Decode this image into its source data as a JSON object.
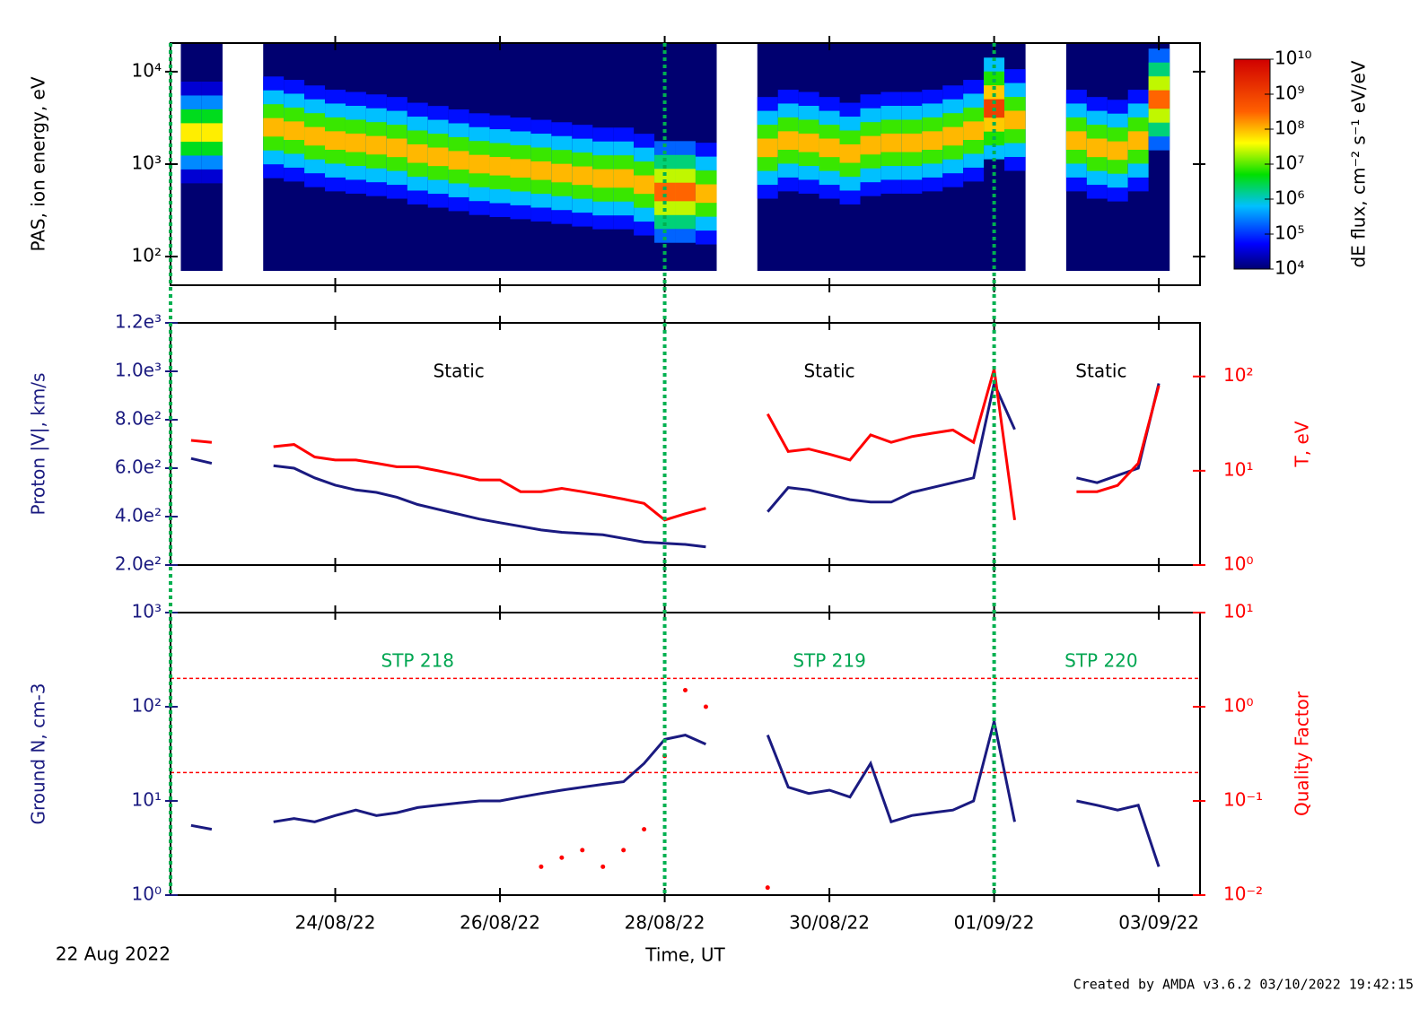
{
  "chart_data": [
    {
      "type": "spectrogram",
      "ylabel": "PAS, ion energy, eV",
      "ylog": true,
      "ylim": [
        49,
        20400
      ],
      "yticks": [
        {
          "value": 100,
          "label": "10²"
        },
        {
          "value": 1000,
          "label": "10³"
        },
        {
          "value": 10000,
          "label": "10⁴"
        }
      ],
      "xlim": [
        0,
        12.5
      ],
      "xticks": [
        {
          "value": 2,
          "label": "24/08/22"
        },
        {
          "value": 4,
          "label": "26/08/22"
        },
        {
          "value": 6,
          "label": "28/08/22"
        },
        {
          "value": 8,
          "label": "30/08/22"
        },
        {
          "value": 10,
          "label": "01/09/22"
        },
        {
          "value": 12,
          "label": "03/09/22"
        }
      ],
      "x": [
        0.25,
        0.5,
        0.75,
        1,
        1.25,
        1.5,
        1.75,
        2,
        2.25,
        2.5,
        2.75,
        3,
        3.25,
        3.5,
        3.75,
        4,
        4.25,
        4.5,
        4.75,
        5,
        5.25,
        5.5,
        5.75,
        6,
        6.25,
        6.5,
        6.75,
        7,
        7.25,
        7.5,
        7.75,
        8,
        8.25,
        8.5,
        8.75,
        9,
        9.25,
        9.5,
        9.75,
        10,
        10.25,
        10.5,
        10.75,
        11,
        11.25,
        11.5,
        11.75,
        12
      ],
      "energy_range": [
        70,
        20000
      ],
      "peak_energy": [
        2200,
        2200,
        null,
        null,
        2500,
        2300,
        2000,
        1800,
        1700,
        1600,
        1500,
        1300,
        1200,
        1100,
        1000,
        950,
        900,
        850,
        800,
        750,
        700,
        700,
        600,
        500,
        500,
        480,
        null,
        null,
        1500,
        1800,
        1700,
        1500,
        1300,
        1600,
        1700,
        1700,
        1800,
        2000,
        2300,
        4000,
        3000,
        null,
        null,
        1800,
        1500,
        1400,
        1800,
        5000
      ],
      "peak_flux": [
        50000000,
        50000000,
        null,
        null,
        100000000,
        100000000,
        100000000,
        100000000,
        100000000,
        100000000,
        100000000,
        100000000,
        100000000,
        100000000,
        100000000,
        100000000,
        100000000,
        100000000,
        100000000,
        100000000,
        100000000,
        100000000,
        100000000,
        300000000,
        300000000,
        100000000,
        null,
        null,
        100000000,
        100000000,
        100000000,
        100000000,
        100000000,
        100000000,
        100000000,
        100000000,
        100000000,
        100000000,
        100000000,
        1000000000,
        100000000,
        null,
        null,
        100000000,
        100000000,
        100000000,
        100000000,
        300000000
      ],
      "colorbar": {
        "label": "dE flux, cm⁻² s⁻¹ eV/eV",
        "clim": [
          10000,
          10000000000
        ],
        "ticks": [
          {
            "value": 10000,
            "label": "10⁴"
          },
          {
            "value": 100000,
            "label": "10⁵"
          },
          {
            "value": 1000000,
            "label": "10⁶"
          },
          {
            "value": 10000000,
            "label": "10⁷"
          },
          {
            "value": 100000000,
            "label": "10⁸"
          },
          {
            "value": 1000000000,
            "label": "10⁹"
          },
          {
            "value": 10000000000,
            "label": "10¹⁰"
          }
        ]
      }
    },
    {
      "type": "line",
      "ylabel": "Proton |V|, km/s",
      "y2label": "T, eV",
      "ylim": [
        200,
        1200
      ],
      "yticks": [
        {
          "value": 200,
          "label": "2.0e²"
        },
        {
          "value": 400,
          "label": "4.0e²"
        },
        {
          "value": 600,
          "label": "6.0e²"
        },
        {
          "value": 800,
          "label": "8.0e²"
        },
        {
          "value": 1000,
          "label": "1.0e³"
        },
        {
          "value": 1200,
          "label": "1.2e³"
        }
      ],
      "y2log": true,
      "y2lim": [
        1,
        370
      ],
      "y2ticks": [
        {
          "value": 1,
          "label": "10⁰"
        },
        {
          "value": 10,
          "label": "10¹"
        },
        {
          "value": 100,
          "label": "10²"
        }
      ],
      "xlim": [
        0,
        12.5
      ],
      "xticks": [
        {
          "value": 2,
          "label": "24/08/22"
        },
        {
          "value": 4,
          "label": "26/08/22"
        },
        {
          "value": 6,
          "label": "28/08/22"
        },
        {
          "value": 8,
          "label": "30/08/22"
        },
        {
          "value": 10,
          "label": "01/09/22"
        },
        {
          "value": 12,
          "label": "03/09/22"
        }
      ],
      "x": [
        0.25,
        0.5,
        0.75,
        1,
        1.25,
        1.5,
        1.75,
        2,
        2.25,
        2.5,
        2.75,
        3,
        3.25,
        3.5,
        3.75,
        4,
        4.25,
        4.5,
        4.75,
        5,
        5.25,
        5.5,
        5.75,
        6,
        6.25,
        6.5,
        6.75,
        7,
        7.25,
        7.5,
        7.75,
        8,
        8.25,
        8.5,
        8.75,
        9,
        9.25,
        9.5,
        9.75,
        10,
        10.25,
        10.5,
        10.75,
        11,
        11.25,
        11.5,
        11.75,
        12
      ],
      "series": [
        {
          "name": "Proton |V|",
          "color": "#1a1a80",
          "axis": "y",
          "style": "line",
          "values": [
            640,
            620,
            null,
            null,
            610,
            600,
            560,
            530,
            510,
            500,
            480,
            450,
            430,
            410,
            390,
            375,
            360,
            345,
            335,
            330,
            325,
            310,
            295,
            290,
            285,
            275,
            null,
            null,
            420,
            520,
            510,
            490,
            470,
            460,
            460,
            500,
            520,
            540,
            560,
            950,
            760,
            null,
            null,
            560,
            540,
            570,
            600,
            950
          ]
        },
        {
          "name": "T",
          "color": "#ff0000",
          "axis": "y2",
          "style": "line",
          "values": [
            21,
            20,
            null,
            null,
            18,
            19,
            14,
            13,
            13,
            12,
            11,
            11,
            10,
            9,
            8,
            8,
            6,
            6,
            6.5,
            6,
            5.5,
            5,
            4.5,
            3,
            3.5,
            4,
            null,
            null,
            40,
            16,
            17,
            15,
            13,
            24,
            20,
            23,
            25,
            27,
            20,
            120,
            3,
            null,
            null,
            6,
            6,
            7,
            12,
            80
          ]
        }
      ],
      "annotations": [
        {
          "text": "Static",
          "x": 3.5,
          "color": "#000000"
        },
        {
          "text": "Static",
          "x": 8,
          "color": "#000000"
        },
        {
          "text": "Static",
          "x": 11.3,
          "color": "#000000"
        }
      ]
    },
    {
      "type": "line",
      "ylabel": "Ground N, cm-3",
      "y2label": "Quality Factor",
      "ylog": true,
      "ylim": [
        1,
        1000
      ],
      "yticks": [
        {
          "value": 1,
          "label": "10⁰"
        },
        {
          "value": 10,
          "label": "10¹"
        },
        {
          "value": 100,
          "label": "10²"
        },
        {
          "value": 1000,
          "label": "10³"
        }
      ],
      "y2log": true,
      "y2lim": [
        0.01,
        10
      ],
      "y2ticks": [
        {
          "value": 0.01,
          "label": "10⁻²"
        },
        {
          "value": 0.1,
          "label": "10⁻¹"
        },
        {
          "value": 1,
          "label": "10⁰"
        },
        {
          "value": 10,
          "label": "10¹"
        }
      ],
      "xlabel": "Time, UT",
      "xlim": [
        0,
        12.5
      ],
      "xticks": [
        {
          "value": 2,
          "label": "24/08/22"
        },
        {
          "value": 4,
          "label": "26/08/22"
        },
        {
          "value": 6,
          "label": "28/08/22"
        },
        {
          "value": 8,
          "label": "30/08/22"
        },
        {
          "value": 10,
          "label": "01/09/22"
        },
        {
          "value": 12,
          "label": "03/09/22"
        }
      ],
      "x": [
        0.25,
        0.5,
        0.75,
        1,
        1.25,
        1.5,
        1.75,
        2,
        2.25,
        2.5,
        2.75,
        3,
        3.25,
        3.5,
        3.75,
        4,
        4.25,
        4.5,
        4.75,
        5,
        5.25,
        5.5,
        5.75,
        6,
        6.25,
        6.5,
        6.75,
        7,
        7.25,
        7.5,
        7.75,
        8,
        8.25,
        8.5,
        8.75,
        9,
        9.25,
        9.5,
        9.75,
        10,
        10.25,
        10.5,
        10.75,
        11,
        11.25,
        11.5,
        11.75,
        12
      ],
      "series": [
        {
          "name": "Ground N",
          "color": "#1a1a80",
          "axis": "y",
          "style": "line",
          "values": [
            5.5,
            5,
            null,
            null,
            6,
            6.5,
            6,
            7,
            8,
            7,
            7.5,
            8.5,
            9,
            9.5,
            10,
            10,
            11,
            12,
            13,
            14,
            15,
            16,
            25,
            45,
            50,
            40,
            null,
            null,
            50,
            14,
            12,
            13,
            11,
            25,
            6,
            7,
            7.5,
            8,
            10,
            70,
            6,
            null,
            null,
            10,
            9,
            8,
            9,
            2
          ]
        },
        {
          "name": "Quality Factor",
          "color": "#ff0000",
          "axis": "y2",
          "style": "points",
          "values": [
            null,
            null,
            null,
            null,
            null,
            null,
            null,
            null,
            null,
            null,
            null,
            null,
            null,
            null,
            null,
            null,
            null,
            0.02,
            0.025,
            0.03,
            0.02,
            0.03,
            0.05,
            0.3,
            1.5,
            1.0,
            null,
            null,
            0.012,
            null,
            null,
            null,
            null,
            null,
            null,
            null,
            null,
            null,
            null,
            null,
            null,
            null,
            null,
            null,
            null,
            null,
            null,
            null
          ]
        }
      ],
      "hlines": [
        {
          "value": 2,
          "axis": "y2",
          "color": "#ff0000"
        },
        {
          "value": 0.2,
          "axis": "y2",
          "color": "#ff0000"
        }
      ],
      "annotations": [
        {
          "text": "STP 218",
          "x": 3,
          "color": "#00a651"
        },
        {
          "text": "STP 219",
          "x": 8,
          "color": "#00a651"
        },
        {
          "text": "STP 220",
          "x": 11.3,
          "color": "#00a651"
        }
      ]
    }
  ],
  "boundaries": {
    "color": "#00b050",
    "x": [
      0,
      6,
      10
    ]
  },
  "start_label": "22 Aug 2022",
  "credit": "Created by AMDA v3.6.2 03/10/2022 19:42:15"
}
